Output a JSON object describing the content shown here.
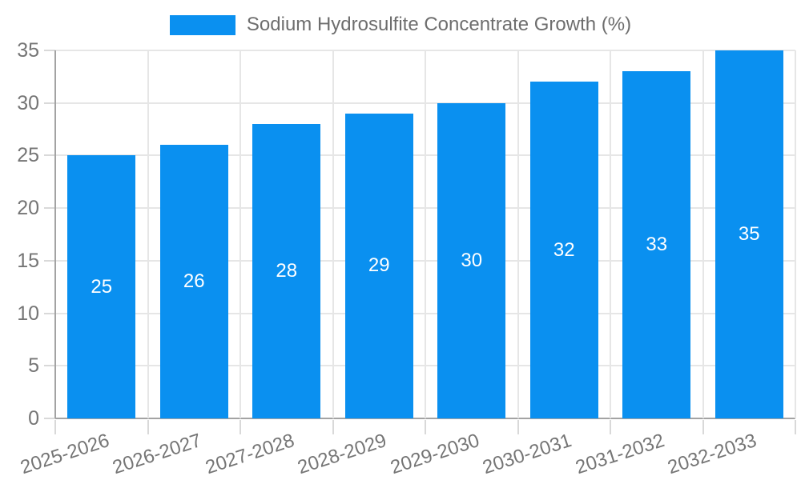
{
  "legend": {
    "label": "Sodium Hydrosulfite Concentrate Growth (%)"
  },
  "chart_data": {
    "type": "bar",
    "title": "Sodium Hydrosulfite Concentrate Growth (%)",
    "categories": [
      "2025-2026",
      "2026-2027",
      "2027-2028",
      "2028-2029",
      "2029-2030",
      "2030-2031",
      "2031-2032",
      "2032-2033"
    ],
    "values": [
      25,
      26,
      28,
      29,
      30,
      32,
      33,
      35
    ],
    "xlabel": "",
    "ylabel": "",
    "ylim": [
      0,
      35
    ],
    "yticks": [
      0,
      5,
      10,
      15,
      20,
      25,
      30,
      35
    ],
    "grid": true,
    "legend_position": "top",
    "x_label_rotation_deg": -18,
    "value_label_position": "center",
    "colors": {
      "bar": "#0a90f0",
      "value_label": "#ffffff",
      "axis_text": "#757575",
      "legend_text": "#6e6e6e",
      "gridline": "#e6e6e6",
      "axis_line": "#a3a3a3",
      "tick": "#d9d9d9",
      "background": "#ffffff"
    }
  }
}
